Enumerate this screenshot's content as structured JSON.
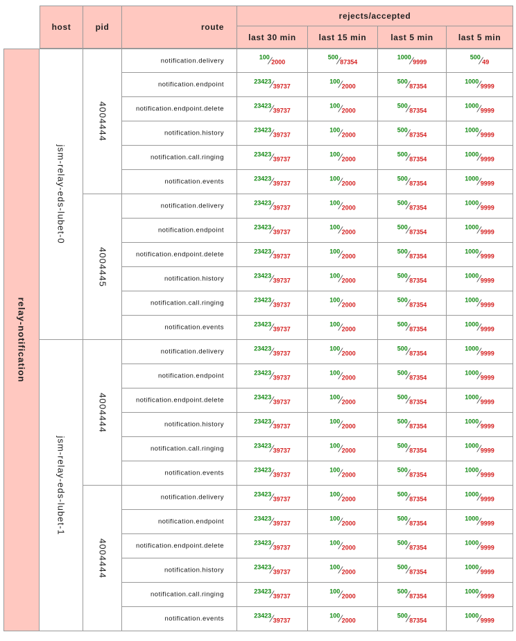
{
  "header": {
    "host": "host",
    "pid": "pid",
    "route": "route",
    "group": "rejects/accepted",
    "windows": [
      "last 30 min",
      "last 15 min",
      "last 5 min",
      "last 5 min"
    ]
  },
  "service": "relay-notification",
  "hosts": [
    {
      "name": "jsm-relay-eds-lubet-0",
      "pids": [
        {
          "pid": "4004444",
          "routes": [
            {
              "route": "notification.delivery",
              "values": [
                [
                  "100",
                  "2000"
                ],
                [
                  "500",
                  "87354"
                ],
                [
                  "1000",
                  "9999"
                ],
                [
                  "500",
                  "49"
                ]
              ]
            },
            {
              "route": "notification.endpoint",
              "values": [
                [
                  "23423",
                  "39737"
                ],
                [
                  "100",
                  "2000"
                ],
                [
                  "500",
                  "87354"
                ],
                [
                  "1000",
                  "9999"
                ]
              ]
            },
            {
              "route": "notification.endpoint.delete",
              "values": [
                [
                  "23423",
                  "39737"
                ],
                [
                  "100",
                  "2000"
                ],
                [
                  "500",
                  "87354"
                ],
                [
                  "1000",
                  "9999"
                ]
              ]
            },
            {
              "route": "notification.history",
              "values": [
                [
                  "23423",
                  "39737"
                ],
                [
                  "100",
                  "2000"
                ],
                [
                  "500",
                  "87354"
                ],
                [
                  "1000",
                  "9999"
                ]
              ]
            },
            {
              "route": "notification.call.ringing",
              "values": [
                [
                  "23423",
                  "39737"
                ],
                [
                  "100",
                  "2000"
                ],
                [
                  "500",
                  "87354"
                ],
                [
                  "1000",
                  "9999"
                ]
              ]
            },
            {
              "route": "notification.events",
              "values": [
                [
                  "23423",
                  "39737"
                ],
                [
                  "100",
                  "2000"
                ],
                [
                  "500",
                  "87354"
                ],
                [
                  "1000",
                  "9999"
                ]
              ]
            }
          ]
        },
        {
          "pid": "4004445",
          "routes": [
            {
              "route": "notification.delivery",
              "values": [
                [
                  "23423",
                  "39737"
                ],
                [
                  "100",
                  "2000"
                ],
                [
                  "500",
                  "87354"
                ],
                [
                  "1000",
                  "9999"
                ]
              ]
            },
            {
              "route": "notification.endpoint",
              "values": [
                [
                  "23423",
                  "39737"
                ],
                [
                  "100",
                  "2000"
                ],
                [
                  "500",
                  "87354"
                ],
                [
                  "1000",
                  "9999"
                ]
              ]
            },
            {
              "route": "notification.endpoint.delete",
              "values": [
                [
                  "23423",
                  "39737"
                ],
                [
                  "100",
                  "2000"
                ],
                [
                  "500",
                  "87354"
                ],
                [
                  "1000",
                  "9999"
                ]
              ]
            },
            {
              "route": "notification.history",
              "values": [
                [
                  "23423",
                  "39737"
                ],
                [
                  "100",
                  "2000"
                ],
                [
                  "500",
                  "87354"
                ],
                [
                  "1000",
                  "9999"
                ]
              ]
            },
            {
              "route": "notification.call.ringing",
              "values": [
                [
                  "23423",
                  "39737"
                ],
                [
                  "100",
                  "2000"
                ],
                [
                  "500",
                  "87354"
                ],
                [
                  "1000",
                  "9999"
                ]
              ]
            },
            {
              "route": "notification.events",
              "values": [
                [
                  "23423",
                  "39737"
                ],
                [
                  "100",
                  "2000"
                ],
                [
                  "500",
                  "87354"
                ],
                [
                  "1000",
                  "9999"
                ]
              ]
            }
          ]
        }
      ]
    },
    {
      "name": "jsm-relay-eds-lubet-1",
      "pids": [
        {
          "pid": "4004444",
          "routes": [
            {
              "route": "notification.delivery",
              "values": [
                [
                  "23423",
                  "39737"
                ],
                [
                  "100",
                  "2000"
                ],
                [
                  "500",
                  "87354"
                ],
                [
                  "1000",
                  "9999"
                ]
              ]
            },
            {
              "route": "notification.endpoint",
              "values": [
                [
                  "23423",
                  "39737"
                ],
                [
                  "100",
                  "2000"
                ],
                [
                  "500",
                  "87354"
                ],
                [
                  "1000",
                  "9999"
                ]
              ]
            },
            {
              "route": "notification.endpoint.delete",
              "values": [
                [
                  "23423",
                  "39737"
                ],
                [
                  "100",
                  "2000"
                ],
                [
                  "500",
                  "87354"
                ],
                [
                  "1000",
                  "9999"
                ]
              ]
            },
            {
              "route": "notification.history",
              "values": [
                [
                  "23423",
                  "39737"
                ],
                [
                  "100",
                  "2000"
                ],
                [
                  "500",
                  "87354"
                ],
                [
                  "1000",
                  "9999"
                ]
              ]
            },
            {
              "route": "notification.call.ringing",
              "values": [
                [
                  "23423",
                  "39737"
                ],
                [
                  "100",
                  "2000"
                ],
                [
                  "500",
                  "87354"
                ],
                [
                  "1000",
                  "9999"
                ]
              ]
            },
            {
              "route": "notification.events",
              "values": [
                [
                  "23423",
                  "39737"
                ],
                [
                  "100",
                  "2000"
                ],
                [
                  "500",
                  "87354"
                ],
                [
                  "1000",
                  "9999"
                ]
              ]
            }
          ]
        },
        {
          "pid": "4004444",
          "routes": [
            {
              "route": "notification.delivery",
              "values": [
                [
                  "23423",
                  "39737"
                ],
                [
                  "100",
                  "2000"
                ],
                [
                  "500",
                  "87354"
                ],
                [
                  "1000",
                  "9999"
                ]
              ]
            },
            {
              "route": "notification.endpoint",
              "values": [
                [
                  "23423",
                  "39737"
                ],
                [
                  "100",
                  "2000"
                ],
                [
                  "500",
                  "87354"
                ],
                [
                  "1000",
                  "9999"
                ]
              ]
            },
            {
              "route": "notification.endpoint.delete",
              "values": [
                [
                  "23423",
                  "39737"
                ],
                [
                  "100",
                  "2000"
                ],
                [
                  "500",
                  "87354"
                ],
                [
                  "1000",
                  "9999"
                ]
              ]
            },
            {
              "route": "notification.history",
              "values": [
                [
                  "23423",
                  "39737"
                ],
                [
                  "100",
                  "2000"
                ],
                [
                  "500",
                  "87354"
                ],
                [
                  "1000",
                  "9999"
                ]
              ]
            },
            {
              "route": "notification.call.ringing",
              "values": [
                [
                  "23423",
                  "39737"
                ],
                [
                  "100",
                  "2000"
                ],
                [
                  "500",
                  "87354"
                ],
                [
                  "1000",
                  "9999"
                ]
              ]
            },
            {
              "route": "notification.events",
              "values": [
                [
                  "23423",
                  "39737"
                ],
                [
                  "100",
                  "2000"
                ],
                [
                  "500",
                  "87354"
                ],
                [
                  "1000",
                  "9999"
                ]
              ]
            }
          ]
        }
      ]
    }
  ]
}
